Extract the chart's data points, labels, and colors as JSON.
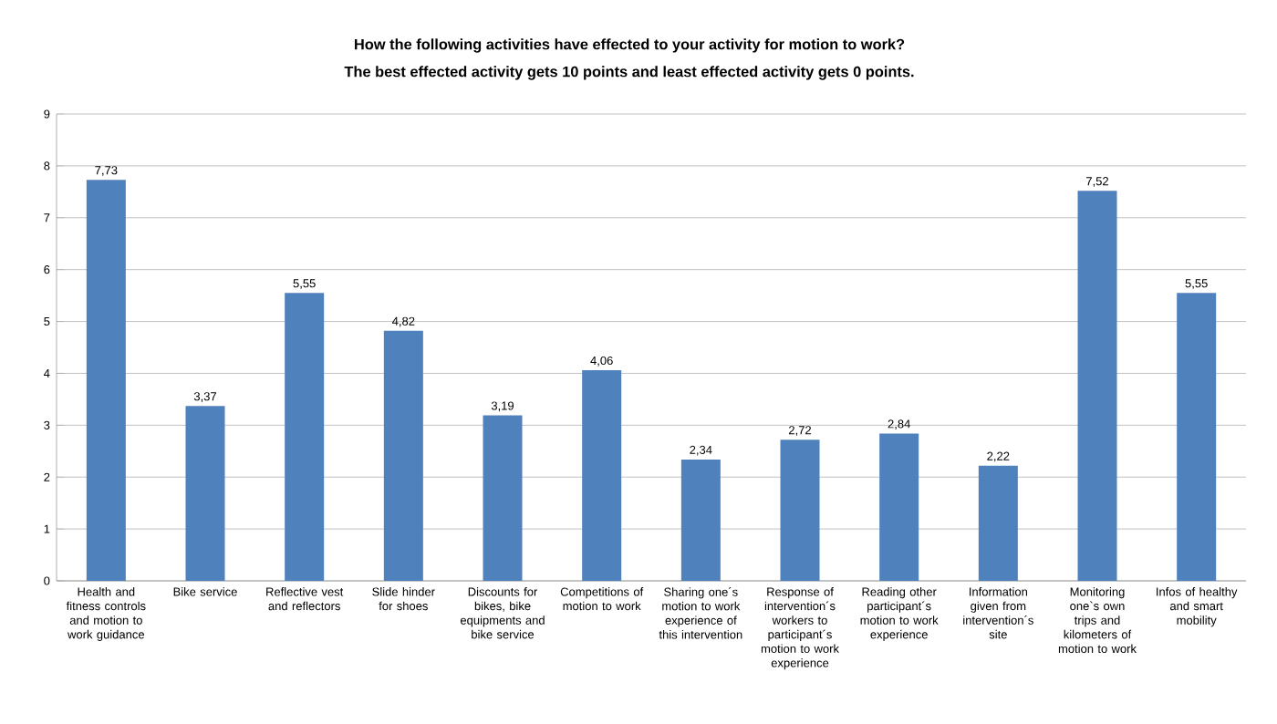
{
  "chart_data": {
    "type": "bar",
    "title": "How the following activities have effected to your activity for motion to work?",
    "subtitle": "The best effected activity gets 10 points and least effected activity gets 0 points.",
    "categories": [
      "Health and fitness controls and motion to work guidance",
      "Bike service",
      "Reflective vest and reflectors",
      "Slide hinder for shoes",
      "Discounts for bikes, bike equipments and bike service",
      "Competitions of motion to work",
      "Sharing one´s motion to work experience of this intervention",
      "Response of intervention´s workers to participant´s motion to work experience",
      "Reading other participant´s motion to work experience",
      "Information given from intervention´s site",
      "Monitoring one`s own trips and kilometers of motion to work",
      "Infos of healthy and smart mobility"
    ],
    "values": [
      7.73,
      3.37,
      5.55,
      4.82,
      3.19,
      4.06,
      2.34,
      2.72,
      2.84,
      2.22,
      7.52,
      5.55
    ],
    "value_labels": [
      "7,73",
      "3,37",
      "5,55",
      "4,82",
      "3,19",
      "4,06",
      "2,34",
      "2,72",
      "2,84",
      "2,22",
      "7,52",
      "5,55"
    ],
    "color": "#4f81bd",
    "ylim": [
      0,
      9
    ],
    "yticks": [
      0,
      1,
      2,
      3,
      4,
      5,
      6,
      7,
      8,
      9
    ],
    "grid": "y"
  }
}
